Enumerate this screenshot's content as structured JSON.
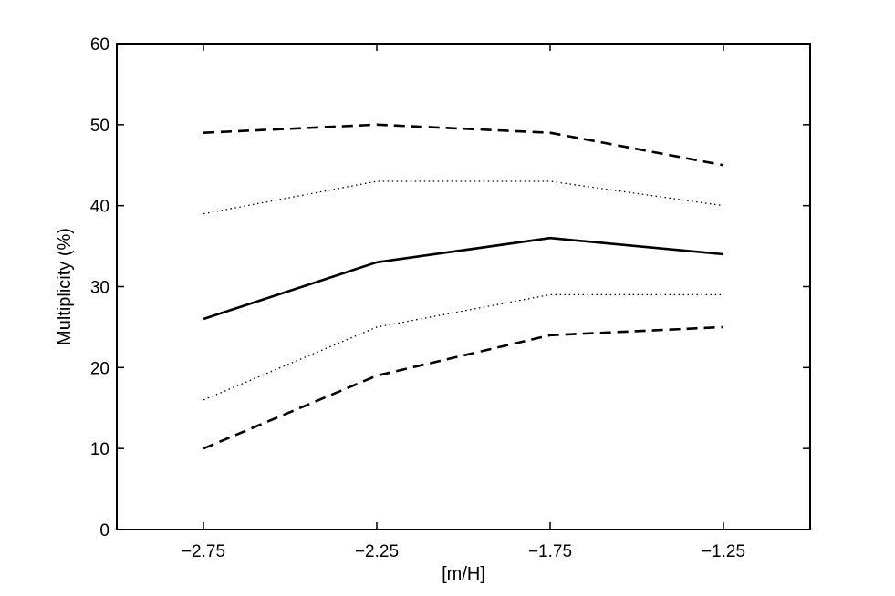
{
  "chart_data": {
    "type": "line",
    "title": "",
    "xlabel": "[m/H]",
    "ylabel": "Multiplicity (%)",
    "x": [
      -2.75,
      -2.25,
      -1.75,
      -1.25
    ],
    "xlim": [
      -3.0,
      -1.0
    ],
    "ylim": [
      0,
      60
    ],
    "xticks": [
      -2.75,
      -2.25,
      -1.75,
      -1.25
    ],
    "xtick_labels": [
      "−2.75",
      "−2.25",
      "−1.75",
      "−1.25"
    ],
    "yticks": [
      0,
      10,
      20,
      30,
      40,
      50,
      60
    ],
    "ytick_labels": [
      "0",
      "10",
      "20",
      "30",
      "40",
      "50",
      "60"
    ],
    "grid": false,
    "series": [
      {
        "values": [
          49,
          50,
          49,
          45
        ],
        "style": "dashed",
        "color": "#000000"
      },
      {
        "values": [
          39,
          43,
          43,
          40
        ],
        "style": "dotted",
        "color": "#000000"
      },
      {
        "values": [
          26,
          33,
          36,
          34
        ],
        "style": "solid",
        "color": "#000000"
      },
      {
        "values": [
          16,
          25,
          29,
          29
        ],
        "style": "dotted",
        "color": "#000000"
      },
      {
        "values": [
          10,
          19,
          24,
          25
        ],
        "style": "dashed",
        "color": "#000000"
      }
    ]
  }
}
